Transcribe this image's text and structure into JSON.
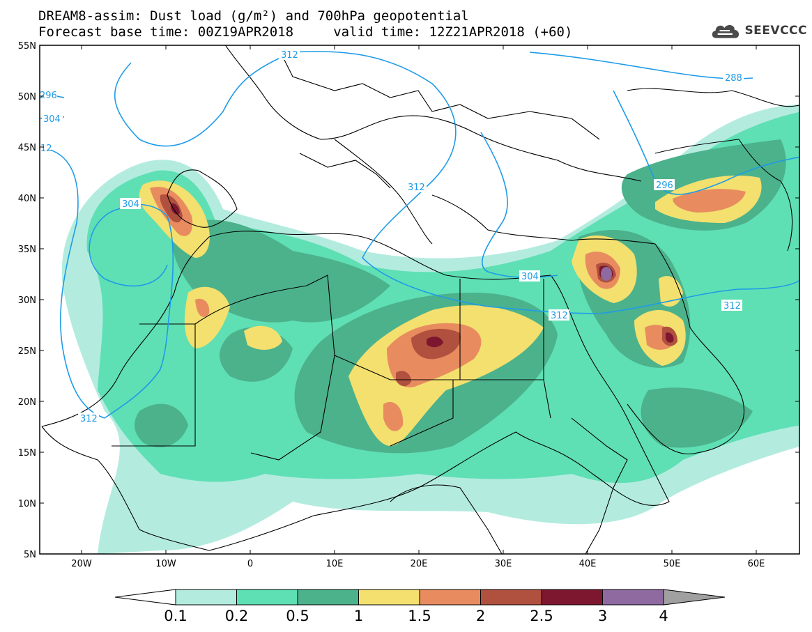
{
  "header": {
    "title_line1": "DREAM8-assim: Dust load (g/m²) and 700hPa geopotential",
    "title_line2": "Forecast base time: 00Z19APR2018     valid time: 12Z21APR2018 (+60)",
    "logo_text": "SEEVCCC"
  },
  "map": {
    "lat_labels": [
      "55N",
      "50N",
      "45N",
      "40N",
      "35N",
      "30N",
      "25N",
      "20N",
      "15N",
      "10N",
      "5N"
    ],
    "lon_labels": [
      "20W",
      "10W",
      "0",
      "10E",
      "20E",
      "30E",
      "40E",
      "50E",
      "60E"
    ],
    "contour_labels": [
      "312",
      "296",
      "304",
      "12",
      "304",
      "312",
      "296",
      "288",
      "312",
      "304",
      "312",
      "312"
    ],
    "colors": {
      "frame": "#000000",
      "contour": "#1e9be8",
      "land_border": "#000000"
    }
  },
  "colorbar": {
    "bins": [
      {
        "from": 0.1,
        "to": 0.2,
        "color": "#b3ecdf"
      },
      {
        "from": 0.2,
        "to": 0.5,
        "color": "#5fdfb4"
      },
      {
        "from": 0.5,
        "to": 1,
        "color": "#4cb28c"
      },
      {
        "from": 1,
        "to": 1.5,
        "color": "#f3e06e"
      },
      {
        "from": 1.5,
        "to": 2,
        "color": "#e88c60"
      },
      {
        "from": 2,
        "to": 2.5,
        "color": "#b0503e"
      },
      {
        "from": 2.5,
        "to": 3,
        "color": "#7d1730"
      },
      {
        "from": 3,
        "to": 4,
        "color": "#8e6aa0"
      }
    ],
    "under_color": "#ffffff",
    "over_color": "#a0a0a0",
    "tick_labels": [
      "0.1",
      "0.2",
      "0.5",
      "1",
      "1.5",
      "2",
      "2.5",
      "3",
      "4"
    ]
  }
}
